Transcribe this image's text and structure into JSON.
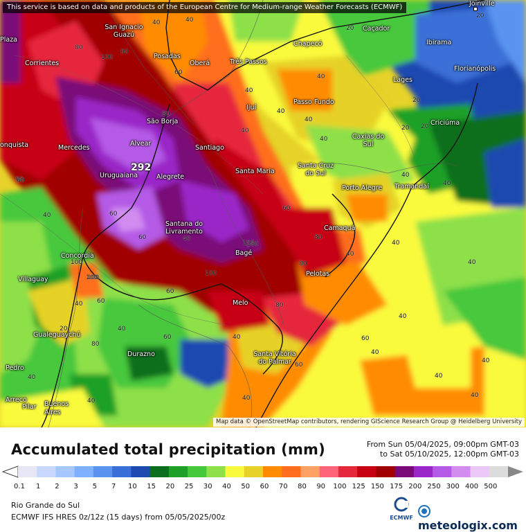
{
  "notice": "This service is based on data and products of the European Centre for Medium-range Weather Forecasts (ECMWF)",
  "attribution": "Map data © OpenStreetMap contributors, rendering GIScience Research Group @ Heidelberg University",
  "max_value": "292",
  "cities": [
    {
      "name": "Joinville"
    },
    {
      "name": "San Ignacio Guazú"
    },
    {
      "name": "Caçador"
    },
    {
      "name": "Chapecó"
    },
    {
      "name": "Ibirama"
    },
    {
      "name": "Posadas"
    },
    {
      "name": "Oberá"
    },
    {
      "name": "Corrientes"
    },
    {
      "name": "Três Passos"
    },
    {
      "name": "Florianópolis"
    },
    {
      "name": "Lages"
    },
    {
      "name": "Passo Fundo"
    },
    {
      "name": "Ijuí"
    },
    {
      "name": "São Borja"
    },
    {
      "name": "Criciúma"
    },
    {
      "name": "Mercedes"
    },
    {
      "name": "Alvear"
    },
    {
      "name": "Santiago"
    },
    {
      "name": "Caxias do Sul"
    },
    {
      "name": "Santa Cruz do Sul"
    },
    {
      "name": "Santa Maria"
    },
    {
      "name": "Uruguaiana"
    },
    {
      "name": "Alegrete"
    },
    {
      "name": "Porto Alegre"
    },
    {
      "name": "Tramandaí"
    },
    {
      "name": "Camaquã"
    },
    {
      "name": "Santana do Livramento"
    },
    {
      "name": "Concordia"
    },
    {
      "name": "Bagé"
    },
    {
      "name": "Pelotas"
    },
    {
      "name": "Villaguay"
    },
    {
      "name": "Melo"
    },
    {
      "name": "Gualeguaychú"
    },
    {
      "name": "Durazno"
    },
    {
      "name": "Santa Vitória do Palmar"
    },
    {
      "name": "Buenos Aires"
    },
    {
      "name": "Pilar"
    },
    {
      "name": "Plaza"
    },
    {
      "name": "onquista"
    },
    {
      "name": "Pedro"
    },
    {
      "name": "Arreco"
    }
  ],
  "iso_labels": [
    "40",
    "20",
    "20",
    "20",
    "40",
    "60",
    "60",
    "80",
    "100",
    "80",
    "40",
    "40",
    "40",
    "40",
    "20",
    "60",
    "60",
    "60",
    "60",
    "100",
    "40",
    "40",
    "40",
    "80",
    "80",
    "60",
    "60",
    "100",
    "100",
    "60",
    "60",
    "40",
    "40",
    "40",
    "40",
    "40",
    "80",
    "40",
    "60",
    "40",
    "40",
    "40",
    "40",
    "40",
    "40",
    "40",
    "60",
    "100",
    "80",
    "100",
    "150",
    "40",
    "40",
    "20",
    "40",
    "40",
    "20"
  ],
  "legend": {
    "title": "Accumulated total precipitation (mm)",
    "period_from": "From Sun 05/04/2025, 09:00pm GMT-03",
    "period_to": "to Sat 05/10/2025, 12:00pm GMT-03",
    "levels": [
      "0.1",
      "1",
      "2",
      "3",
      "5",
      "7",
      "10",
      "15",
      "20",
      "25",
      "30",
      "40",
      "50",
      "60",
      "70",
      "80",
      "90",
      "100",
      "125",
      "150",
      "175",
      "200",
      "250",
      "300",
      "400",
      "500"
    ],
    "colors": [
      "#e6e6f5",
      "#c8d8ff",
      "#a6c8ff",
      "#7eb0ff",
      "#5a94f0",
      "#3a6fd8",
      "#1f4ab0",
      "#0a6e1e",
      "#1ea028",
      "#46c83c",
      "#8ee04a",
      "#fafa3c",
      "#e6d228",
      "#ff8c00",
      "#ff6e1e",
      "#ffa064",
      "#ff6478",
      "#e6283c",
      "#c80014",
      "#a00000",
      "#7a0a78",
      "#9a28c8",
      "#b45ae6",
      "#d28cf0",
      "#ecc8f8",
      "#dcdcdc"
    ]
  },
  "footer": {
    "region": "Rio Grande do Sul",
    "model": "ECMWF IFS HRES 0z/12z (15 days) from 05/05/2025/00z",
    "ecmwf_logo": "ECMWF",
    "brand": "meteologix.com"
  },
  "icons": {
    "ecmwf": "ecmwf-logo-icon",
    "brand": "meteologix-logo-icon"
  }
}
